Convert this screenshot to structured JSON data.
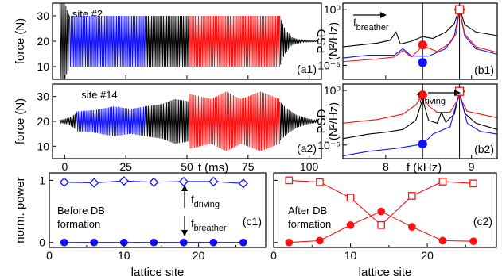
{
  "chart_data": [
    {
      "id": "a1",
      "type": "line",
      "panel_label": "(a1)",
      "annotation": "site #2",
      "ylabel": "force (N)",
      "xlabel": "",
      "xlim": [
        -5,
        105
      ],
      "ylim": [
        5,
        35
      ],
      "yticks": [
        "10",
        "20",
        "30"
      ],
      "xticks": [],
      "baseline": 20,
      "segments": [
        {
          "color": "#000000",
          "x0": -2,
          "x1": 2,
          "env": [
            [
              -2,
              15
            ],
            [
              0,
              15
            ],
            [
              2,
              10
            ]
          ]
        },
        {
          "color": "#1010ff",
          "x0": 2,
          "x1": 33,
          "env": [
            [
              2,
              10
            ],
            [
              33,
              10
            ]
          ]
        },
        {
          "color": "#000000",
          "x0": 33,
          "x1": 51,
          "env": [
            [
              33,
              10
            ],
            [
              51,
              10
            ]
          ]
        },
        {
          "color": "#ff1010",
          "x0": 51,
          "x1": 88,
          "env": [
            [
              51,
              10
            ],
            [
              88,
              10
            ]
          ]
        },
        {
          "color": "#000000",
          "x0": 88,
          "x1": 104,
          "env": [
            [
              88,
              10
            ],
            [
              90,
              5
            ],
            [
              93,
              1.5
            ],
            [
              97,
              0.4
            ],
            [
              104,
              0.1
            ]
          ]
        }
      ]
    },
    {
      "id": "a2",
      "type": "line",
      "panel_label": "(a2)",
      "annotation": "site #14",
      "ylabel": "force (N)",
      "xlabel": "t (ms)",
      "xlim": [
        -5,
        105
      ],
      "ylim": [
        5,
        35
      ],
      "yticks": [
        "10",
        "20",
        "30"
      ],
      "xticks": [
        "0",
        "25",
        "50",
        "75",
        "100"
      ],
      "baseline": 20,
      "segments": [
        {
          "color": "#000000",
          "x0": -2,
          "x1": 5,
          "env": [
            [
              -2,
              0.5
            ],
            [
              2,
              1.5
            ],
            [
              5,
              3.5
            ]
          ]
        },
        {
          "color": "#1010ff",
          "x0": 5,
          "x1": 33,
          "env": [
            [
              5,
              4
            ],
            [
              12,
              4.5
            ],
            [
              20,
              6
            ],
            [
              27,
              5
            ],
            [
              33,
              6
            ]
          ]
        },
        {
          "color": "#000000",
          "x0": 33,
          "x1": 51,
          "env": [
            [
              33,
              6
            ],
            [
              40,
              7
            ],
            [
              45,
              9
            ],
            [
              51,
              8
            ]
          ]
        },
        {
          "color": "#ff1010",
          "x0": 51,
          "x1": 88,
          "env": [
            [
              51,
              11
            ],
            [
              60,
              9
            ],
            [
              66,
              12
            ],
            [
              72,
              9
            ],
            [
              80,
              12
            ],
            [
              88,
              9
            ]
          ]
        },
        {
          "color": "#000000",
          "x0": 88,
          "x1": 104,
          "env": [
            [
              88,
              8
            ],
            [
              91,
              5
            ],
            [
              95,
              2.5
            ],
            [
              100,
              1
            ],
            [
              104,
              0.4
            ]
          ]
        }
      ]
    },
    {
      "id": "b1",
      "type": "line",
      "panel_label": "(b1)",
      "annotation": "f",
      "annotation_sub": "breather",
      "ylabel": "PSD",
      "ylabel2": "(N²/Hz)",
      "xlabel": "",
      "log_y": true,
      "xlim": [
        7.5,
        9.3
      ],
      "ylog_range": [
        -7.5,
        0.7
      ],
      "yticks": [
        "10⁰",
        "10⁻⁶"
      ],
      "xticks": [],
      "vlines": [
        8.43,
        8.86
      ],
      "series": [
        {
          "name": "",
          "color": "#000000",
          "points": [
            [
              7.5,
              -4
            ],
            [
              7.7,
              -3.8
            ],
            [
              7.9,
              -3.6
            ],
            [
              8.05,
              -3.3
            ],
            [
              8.12,
              -2.4
            ],
            [
              8.17,
              -3.7
            ],
            [
              8.3,
              -3.4
            ],
            [
              8.43,
              -2.9
            ],
            [
              8.55,
              -3.1
            ],
            [
              8.7,
              -2.4
            ],
            [
              8.8,
              -1.5
            ],
            [
              8.86,
              0.2
            ],
            [
              8.92,
              -1.6
            ],
            [
              9.05,
              -2.4
            ],
            [
              9.3,
              -2.8
            ]
          ]
        },
        {
          "name": "",
          "color": "#1010ff",
          "points": [
            [
              7.5,
              -5.2
            ],
            [
              7.8,
              -4.9
            ],
            [
              8.1,
              -4.9
            ],
            [
              8.2,
              -4.2
            ],
            [
              8.3,
              -5
            ],
            [
              8.5,
              -5
            ],
            [
              8.7,
              -4.2
            ],
            [
              8.8,
              -2.8
            ],
            [
              8.86,
              0
            ],
            [
              8.92,
              -2.8
            ],
            [
              9.05,
              -4.2
            ],
            [
              9.3,
              -4.8
            ]
          ]
        },
        {
          "name": "",
          "color": "#ff1010",
          "points": [
            [
              7.5,
              -5.6
            ],
            [
              7.9,
              -5.3
            ],
            [
              8.1,
              -5.1
            ],
            [
              8.2,
              -4.4
            ],
            [
              8.3,
              -5.1
            ],
            [
              8.43,
              -3.9
            ],
            [
              8.6,
              -4.5
            ],
            [
              8.75,
              -3.6
            ],
            [
              8.82,
              -2.6
            ],
            [
              8.86,
              0
            ],
            [
              8.92,
              -2.6
            ],
            [
              9.05,
              -4
            ],
            [
              9.3,
              -4.6
            ]
          ]
        }
      ],
      "markers": [
        {
          "x": 8.43,
          "y": -3.8,
          "shape": "circle",
          "color": "#ff1010",
          "filled": true
        },
        {
          "x": 8.43,
          "y": -5.7,
          "shape": "circle",
          "color": "#1010ff",
          "filled": true
        },
        {
          "x": 8.86,
          "y": 0.0,
          "shape": "diamond",
          "color": "#1010ff",
          "filled": false
        },
        {
          "x": 8.86,
          "y": 0.0,
          "shape": "square",
          "color": "#ff1010",
          "filled": false
        }
      ]
    },
    {
      "id": "b2",
      "type": "line",
      "panel_label": "(b2)",
      "annotation": "f",
      "annotation_sub": "driving",
      "ylabel": "PSD",
      "ylabel2": "(N²/Hz)",
      "xlabel": "f (kHz)",
      "log_y": true,
      "xlim": [
        7.5,
        9.3
      ],
      "ylog_range": [
        -7.5,
        0.7
      ],
      "yticks": [
        "10⁰",
        "10⁻⁶"
      ],
      "xticks": [
        "8",
        "9"
      ],
      "xtick_values": [
        8,
        9
      ],
      "vlines": [
        8.43,
        8.86
      ],
      "series": [
        {
          "name": "",
          "color": "#000000",
          "points": [
            [
              7.5,
              -5.3
            ],
            [
              7.8,
              -4.8
            ],
            [
              8.0,
              -4.6
            ],
            [
              8.2,
              -4.3
            ],
            [
              8.35,
              -3.3
            ],
            [
              8.43,
              -1.0
            ],
            [
              8.5,
              -3.3
            ],
            [
              8.6,
              -3.6
            ],
            [
              8.65,
              -2.4
            ],
            [
              8.7,
              -3.5
            ],
            [
              8.8,
              -2.6
            ],
            [
              8.86,
              -0.1
            ],
            [
              8.92,
              -2.5
            ],
            [
              9.05,
              -3.6
            ],
            [
              9.3,
              -4.3
            ]
          ]
        },
        {
          "name": "",
          "color": "#ff1010",
          "points": [
            [
              7.5,
              -3.6
            ],
            [
              7.9,
              -3.2
            ],
            [
              8.2,
              -2.6
            ],
            [
              8.35,
              -1.6
            ],
            [
              8.43,
              -0.5
            ],
            [
              8.5,
              -1.7
            ],
            [
              8.6,
              -2.4
            ],
            [
              8.75,
              -2.4
            ],
            [
              8.86,
              -0.7
            ],
            [
              8.95,
              -2.3
            ],
            [
              9.3,
              -3.0
            ]
          ]
        },
        {
          "name": "",
          "color": "#1010ff",
          "points": [
            [
              7.5,
              -7.2
            ],
            [
              7.8,
              -6.7
            ],
            [
              8.1,
              -6.4
            ],
            [
              8.3,
              -6.1
            ],
            [
              8.43,
              -5.9
            ],
            [
              8.55,
              -4.8
            ],
            [
              8.65,
              -4.4
            ],
            [
              8.75,
              -4.0
            ],
            [
              8.86,
              -0.2
            ],
            [
              8.95,
              -3.6
            ],
            [
              9.1,
              -4.5
            ],
            [
              9.3,
              -4.8
            ]
          ]
        }
      ],
      "markers": [
        {
          "x": 8.43,
          "y": -0.5,
          "shape": "circle",
          "color": "#ff1010",
          "filled": true
        },
        {
          "x": 8.43,
          "y": -5.9,
          "shape": "circle",
          "color": "#1010ff",
          "filled": true
        },
        {
          "x": 8.86,
          "y": -0.1,
          "shape": "diamond",
          "color": "#1010ff",
          "filled": false
        },
        {
          "x": 8.86,
          "y": -0.1,
          "shape": "square",
          "color": "#ff1010",
          "filled": false
        }
      ]
    },
    {
      "id": "c1",
      "type": "line",
      "panel_label": "(c1)",
      "annotation_lines": [
        "Before DB",
        "formation"
      ],
      "arrow_top": "f",
      "arrow_top_sub": "driving",
      "arrow_bottom": "f",
      "arrow_bottom_sub": "breather",
      "ylabel": "norm. power",
      "xlabel": "lattice site",
      "xlim": [
        0,
        29
      ],
      "ylim": [
        -0.08,
        1.12
      ],
      "yticks": [
        "0",
        "1"
      ],
      "ytick_values": [
        0,
        1
      ],
      "xticks": [
        "0",
        "10",
        "20"
      ],
      "xtick_values": [
        0,
        10,
        20
      ],
      "series": [
        {
          "name": "",
          "color": "#1010ff",
          "marker": "diamond",
          "filled": false,
          "x": [
            2,
            6,
            10,
            14,
            18,
            22,
            26
          ],
          "y": [
            0.97,
            0.96,
            0.99,
            0.97,
            0.98,
            0.98,
            0.95
          ]
        },
        {
          "name": "",
          "color": "#1010ff",
          "marker": "circle",
          "filled": true,
          "x": [
            2,
            6,
            10,
            14,
            18,
            22,
            26
          ],
          "y": [
            0.0,
            0.0,
            0.0,
            0.0,
            0.0,
            0.0,
            0.0
          ]
        }
      ]
    },
    {
      "id": "c2",
      "type": "line",
      "panel_label": "(c2)",
      "annotation_lines": [
        "After DB",
        "formation"
      ],
      "ylabel": "",
      "xlabel": "lattice site",
      "xlim": [
        0,
        29
      ],
      "ylim": [
        -0.08,
        1.12
      ],
      "yticks": [],
      "xticks": [
        "0",
        "10",
        "20"
      ],
      "xtick_values": [
        0,
        10,
        20
      ],
      "series": [
        {
          "name": "",
          "color": "#ff1010",
          "marker": "square",
          "filled": false,
          "x": [
            2,
            6,
            10,
            14,
            18,
            22,
            26
          ],
          "y": [
            1.0,
            0.97,
            0.72,
            0.28,
            0.75,
            0.98,
            0.95
          ]
        },
        {
          "name": "",
          "color": "#ff1010",
          "marker": "circle",
          "filled": true,
          "x": [
            2,
            6,
            10,
            14,
            18,
            22,
            26
          ],
          "y": [
            0.0,
            0.03,
            0.28,
            0.5,
            0.25,
            0.03,
            0.02
          ]
        }
      ]
    }
  ]
}
